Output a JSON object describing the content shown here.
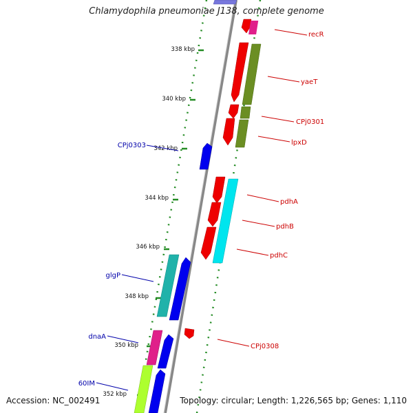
{
  "title": "Chlamydophila pneumoniae J138, complete genome",
  "footer": {
    "accession": "Accession: NC_002491",
    "topology": "Topology: circular; Length: 1,226,565 bp; Genes: 1,110"
  },
  "ticks": [
    "338 kbp",
    "340 kbp",
    "342 kbp",
    "344 kbp",
    "346 kbp",
    "348 kbp",
    "350 kbp",
    "352 kbp"
  ],
  "genes_right": [
    "recR",
    "yaeT",
    "CPj0301",
    "lpxD",
    "pdhA",
    "pdhB",
    "pdhC",
    "CPj0308"
  ],
  "genes_left": [
    "CPj0303",
    "glgP",
    "dnaA",
    "60IM"
  ],
  "colors": {
    "forward_gene_label": "#cc0000",
    "reverse_gene_label": "#0000aa",
    "red_cds": "#ee0000",
    "blue_cds": "#0000ee",
    "olive_cds": "#6b8e23",
    "cyan_cds": "#00e5ee",
    "teal_cds": "#20b2aa",
    "pink_cds": "#e0208a",
    "lime_cds": "#adff2f",
    "backbone": "#888888",
    "tick_green": "#228b22"
  }
}
